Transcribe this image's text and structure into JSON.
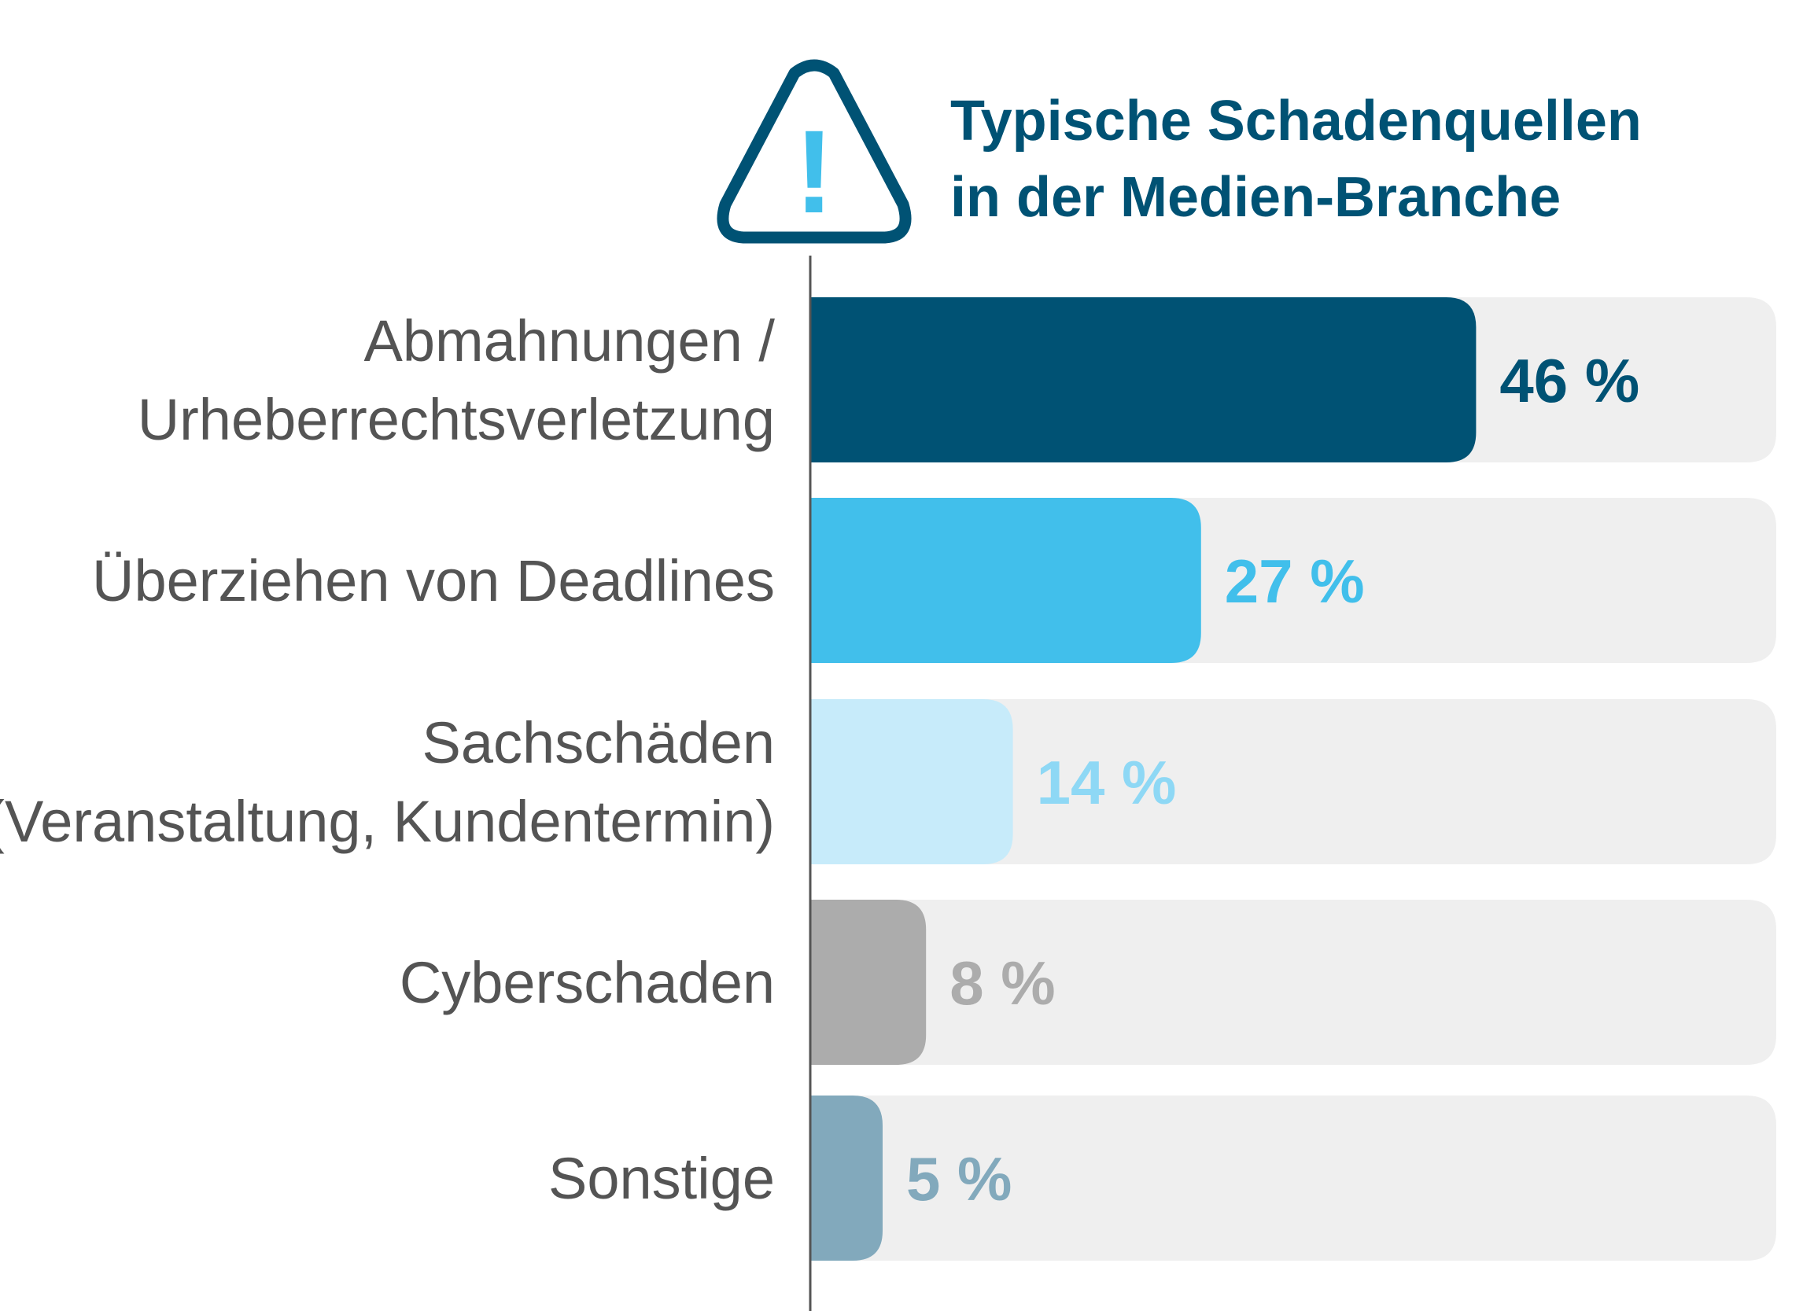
{
  "chart_data": {
    "type": "bar",
    "orientation": "horizontal",
    "title": [
      "Typische Schadenquellen",
      "in der Medien-Branche"
    ],
    "categories": [
      [
        "Abmahnungen /",
        "Urheberrechtsverletzung"
      ],
      [
        "Überziehen von Deadlines"
      ],
      [
        "Sachschäden",
        "(Veranstaltung, Kundentermin)"
      ],
      [
        "Cyberschaden"
      ],
      [
        "Sonstige"
      ]
    ],
    "values": [
      46,
      27,
      14,
      8,
      5
    ],
    "value_labels": [
      "46 %",
      "27 %",
      "14 %",
      "8 %",
      "5 %"
    ],
    "bar_colors": [
      "#005274",
      "#41bfeb",
      "#c7ebfa",
      "#acacac",
      "#82a9bc"
    ],
    "label_colors": [
      "#005274",
      "#41bfeb",
      "#8ed8f5",
      "#acacac",
      "#82a9bc"
    ],
    "track_color": "#efefef",
    "xlim": [
      0,
      100
    ],
    "grid": false,
    "legend": "none"
  },
  "icon": {
    "name": "warning-triangle-icon",
    "glyph": "!",
    "stroke_color": "#005274",
    "glyph_color": "#41bfeb"
  },
  "colors": {
    "title": "#005274",
    "category_text": "#545454",
    "axis_line": "#545454"
  }
}
